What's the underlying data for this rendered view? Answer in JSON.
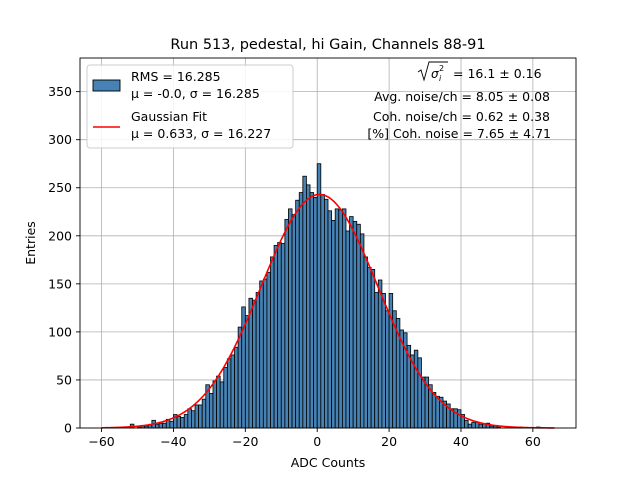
{
  "chart_data": {
    "type": "bar",
    "title": "Run 513, pedestal, hi Gain, Channels 88-91",
    "xlabel": "ADC Counts",
    "ylabel": "Entries",
    "xlim": [
      -66,
      72
    ],
    "ylim": [
      0,
      385
    ],
    "xticks": [
      -60,
      -40,
      -20,
      0,
      20,
      40,
      60
    ],
    "yticks": [
      0,
      50,
      100,
      150,
      200,
      250,
      300,
      350
    ],
    "grid": true,
    "legend_position": "top-left",
    "bin_width": 1,
    "bins_x": [
      -60,
      -59,
      -58,
      -57,
      -56,
      -55,
      -54,
      -53,
      -52,
      -51,
      -50,
      -49,
      -48,
      -47,
      -46,
      -45,
      -44,
      -43,
      -42,
      -41,
      -40,
      -39,
      -38,
      -37,
      -36,
      -35,
      -34,
      -33,
      -32,
      -31,
      -30,
      -29,
      -28,
      -27,
      -26,
      -25,
      -24,
      -23,
      -22,
      -21,
      -20,
      -19,
      -18,
      -17,
      -16,
      -15,
      -14,
      -13,
      -12,
      -11,
      -10,
      -9,
      -8,
      -7,
      -6,
      -5,
      -4,
      -3,
      -2,
      -1,
      0,
      1,
      2,
      3,
      4,
      5,
      6,
      7,
      8,
      9,
      10,
      11,
      12,
      13,
      14,
      15,
      16,
      17,
      18,
      19,
      20,
      21,
      22,
      23,
      24,
      25,
      26,
      27,
      28,
      29,
      30,
      31,
      32,
      33,
      34,
      35,
      36,
      37,
      38,
      39,
      40,
      41,
      42,
      43,
      44,
      45,
      46,
      47,
      48,
      49,
      50,
      51,
      52,
      53,
      54,
      55,
      56,
      57,
      58,
      59,
      60,
      61,
      62,
      63,
      64,
      65
    ],
    "counts": [
      0,
      0,
      0,
      0,
      0,
      0,
      0,
      0,
      4,
      0,
      1,
      2,
      2,
      3,
      8,
      4,
      5,
      5,
      9,
      7,
      14,
      12,
      11,
      14,
      20,
      18,
      24,
      24,
      30,
      45,
      36,
      49,
      54,
      48,
      63,
      72,
      76,
      84,
      105,
      126,
      117,
      135,
      133,
      141,
      153,
      155,
      162,
      178,
      190,
      193,
      192,
      217,
      228,
      222,
      237,
      245,
      262,
      253,
      245,
      240,
      275,
      243,
      238,
      226,
      216,
      228,
      227,
      228,
      205,
      220,
      215,
      212,
      202,
      178,
      167,
      165,
      141,
      154,
      140,
      122,
      140,
      122,
      114,
      102,
      99,
      86,
      76,
      81,
      73,
      53,
      53,
      45,
      37,
      33,
      32,
      28,
      25,
      20,
      20,
      19,
      14,
      8,
      4,
      6,
      6,
      4,
      4,
      5,
      2,
      2,
      1,
      0,
      0,
      0,
      0,
      0,
      1,
      0,
      0,
      0,
      0,
      1,
      0,
      0,
      0,
      0
    ],
    "series": [
      {
        "name": "RMS = 16.285",
        "name_line2": "μ = -0.0, σ = 16.285",
        "type": "histogram",
        "color": "#4682b4",
        "edge_color": "#000000"
      },
      {
        "name": "Gaussian Fit",
        "name_line2": "μ = 0.633, σ = 16.227",
        "type": "line",
        "color": "#ff0000",
        "mu": 0.633,
        "sigma": 16.227,
        "amplitude": 243
      }
    ],
    "annotations": {
      "sigma_sum": "= 16.1 ± 0.16",
      "avg_noise": "Avg. noise/ch = 8.05 ± 0.08",
      "coh_noise": "Coh. noise/ch = 0.62 ± 0.38",
      "coh_noise_pct": "[%] Coh. noise = 7.65 ± 4.71"
    }
  },
  "colors": {
    "axes": "#000000",
    "grid": "#b0b0b0",
    "background": "#ffffff"
  }
}
